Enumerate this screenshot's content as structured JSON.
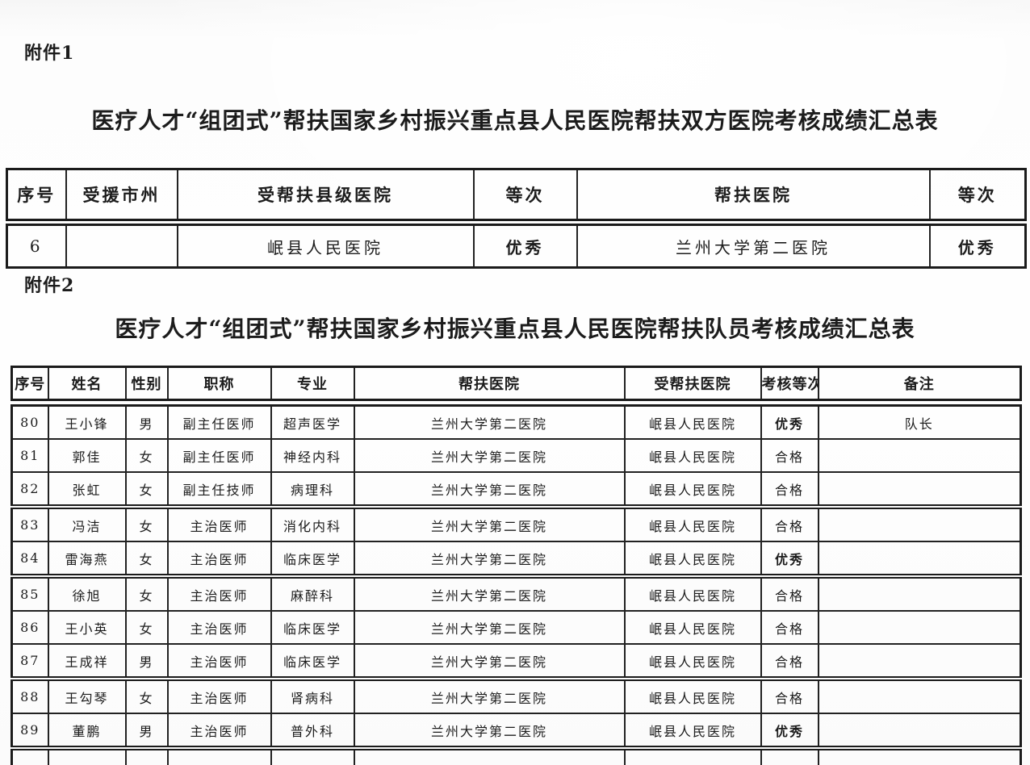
{
  "attachment1": {
    "label": "附件1",
    "title": "医疗人才“组团式”帮扶国家乡村振兴重点县人民医院帮扶双方医院考核成绩汇总表",
    "headers": [
      "序号",
      "受援市州",
      "受帮扶县级医院",
      "等次",
      "帮扶医院",
      "等次"
    ],
    "rows": [
      [
        "6",
        "",
        "岷县人民医院",
        "优秀",
        "兰州大学第二医院",
        "优秀"
      ]
    ],
    "emphasis_value": "优秀",
    "partial_row_visible": false
  },
  "attachment2": {
    "label": "附件2",
    "title": "医疗人才“组团式”帮扶国家乡村振兴重点县人民医院帮扶队员考核成绩汇总表",
    "headers": [
      "序号",
      "姓名",
      "性别",
      "职称",
      "专业",
      "帮扶医院",
      "受帮扶医院",
      "考核等次",
      "备注"
    ],
    "rows": [
      [
        "80",
        "王小锋",
        "男",
        "副主任医师",
        "超声医学",
        "兰州大学第二医院",
        "岷县人民医院",
        "优秀",
        "队长"
      ],
      [
        "81",
        "郭佳",
        "女",
        "副主任医师",
        "神经内科",
        "兰州大学第二医院",
        "岷县人民医院",
        "合格",
        ""
      ],
      [
        "82",
        "张虹",
        "女",
        "副主任技师",
        "病理科",
        "兰州大学第二医院",
        "岷县人民医院",
        "合格",
        ""
      ],
      [
        "83",
        "冯洁",
        "女",
        "主治医师",
        "消化内科",
        "兰州大学第二医院",
        "岷县人民医院",
        "合格",
        ""
      ],
      [
        "84",
        "雷海燕",
        "女",
        "主治医师",
        "临床医学",
        "兰州大学第二医院",
        "岷县人民医院",
        "优秀",
        ""
      ],
      [
        "85",
        "徐旭",
        "女",
        "主治医师",
        "麻醉科",
        "兰州大学第二医院",
        "岷县人民医院",
        "合格",
        ""
      ],
      [
        "86",
        "王小英",
        "女",
        "主治医师",
        "临床医学",
        "兰州大学第二医院",
        "岷县人民医院",
        "合格",
        ""
      ],
      [
        "87",
        "王成祥",
        "男",
        "主治医师",
        "临床医学",
        "兰州大学第二医院",
        "岷县人民医院",
        "合格",
        ""
      ],
      [
        "88",
        "王勾琴",
        "女",
        "主治医师",
        "肾病科",
        "兰州大学第二医院",
        "岷县人民医院",
        "合格",
        ""
      ],
      [
        "89",
        "董鹏",
        "男",
        "主治医师",
        "普外科",
        "兰州大学第二医院",
        "岷县人民医院",
        "优秀",
        ""
      ]
    ],
    "emphasis_value": "优秀",
    "partial_row_visible": true
  }
}
